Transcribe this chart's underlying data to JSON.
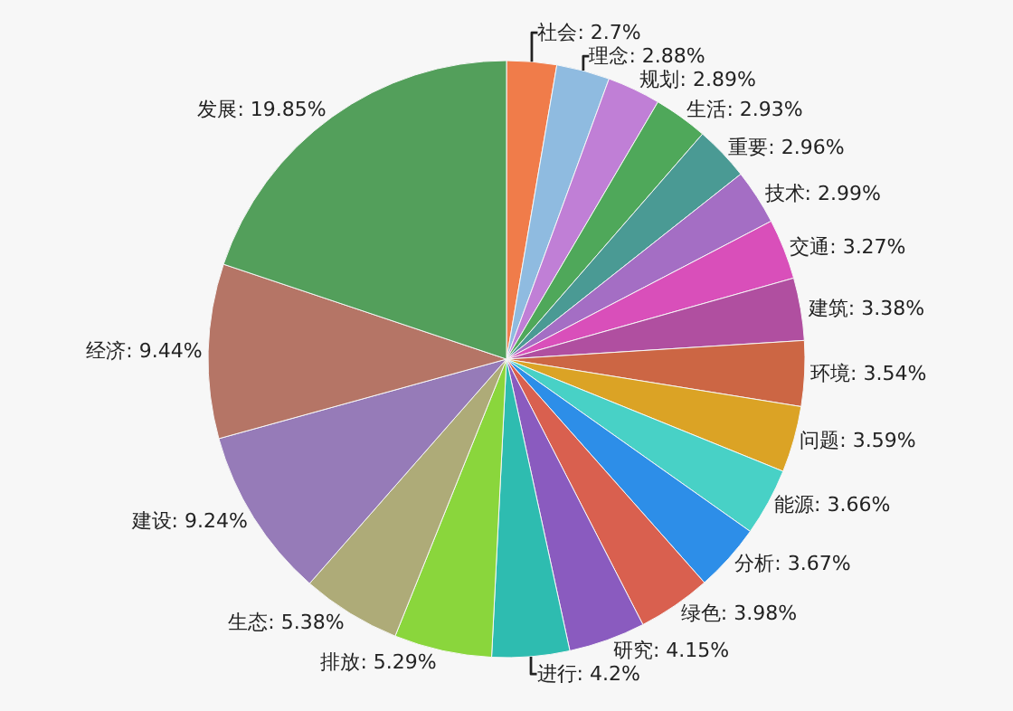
{
  "chart_data": {
    "type": "pie",
    "categories": [
      "社会",
      "理念",
      "规划",
      "生活",
      "重要",
      "技术",
      "交通",
      "建筑",
      "环境",
      "问题",
      "能源",
      "分析",
      "绿色",
      "研究",
      "进行",
      "排放",
      "生态",
      "建设",
      "经济",
      "发展"
    ],
    "values": [
      2.7,
      2.88,
      2.89,
      2.93,
      2.96,
      2.99,
      3.27,
      3.38,
      3.54,
      3.59,
      3.66,
      3.67,
      3.98,
      4.15,
      4.2,
      5.29,
      5.38,
      9.24,
      9.44,
      19.85
    ],
    "value_labels": [
      "2.7%",
      "2.88%",
      "2.89%",
      "2.93%",
      "2.96%",
      "2.99%",
      "3.27%",
      "3.38%",
      "3.54%",
      "3.59%",
      "3.66%",
      "3.67%",
      "3.98%",
      "4.15%",
      "4.2%",
      "5.29%",
      "5.38%",
      "9.24%",
      "9.44%",
      "19.85%"
    ],
    "colors": [
      "#f07c4a",
      "#8fbbe0",
      "#c07fd6",
      "#4fa85a",
      "#4a9a94",
      "#a46ec4",
      "#d94fba",
      "#b04fa0",
      "#cc6644",
      "#dba325",
      "#48d1c6",
      "#2d8ee8",
      "#d9604f",
      "#8a5bbf",
      "#2ebcb0",
      "#8ad63c",
      "#aeab78",
      "#967bb8",
      "#b57566",
      "#539f5b"
    ],
    "legend": false
  }
}
